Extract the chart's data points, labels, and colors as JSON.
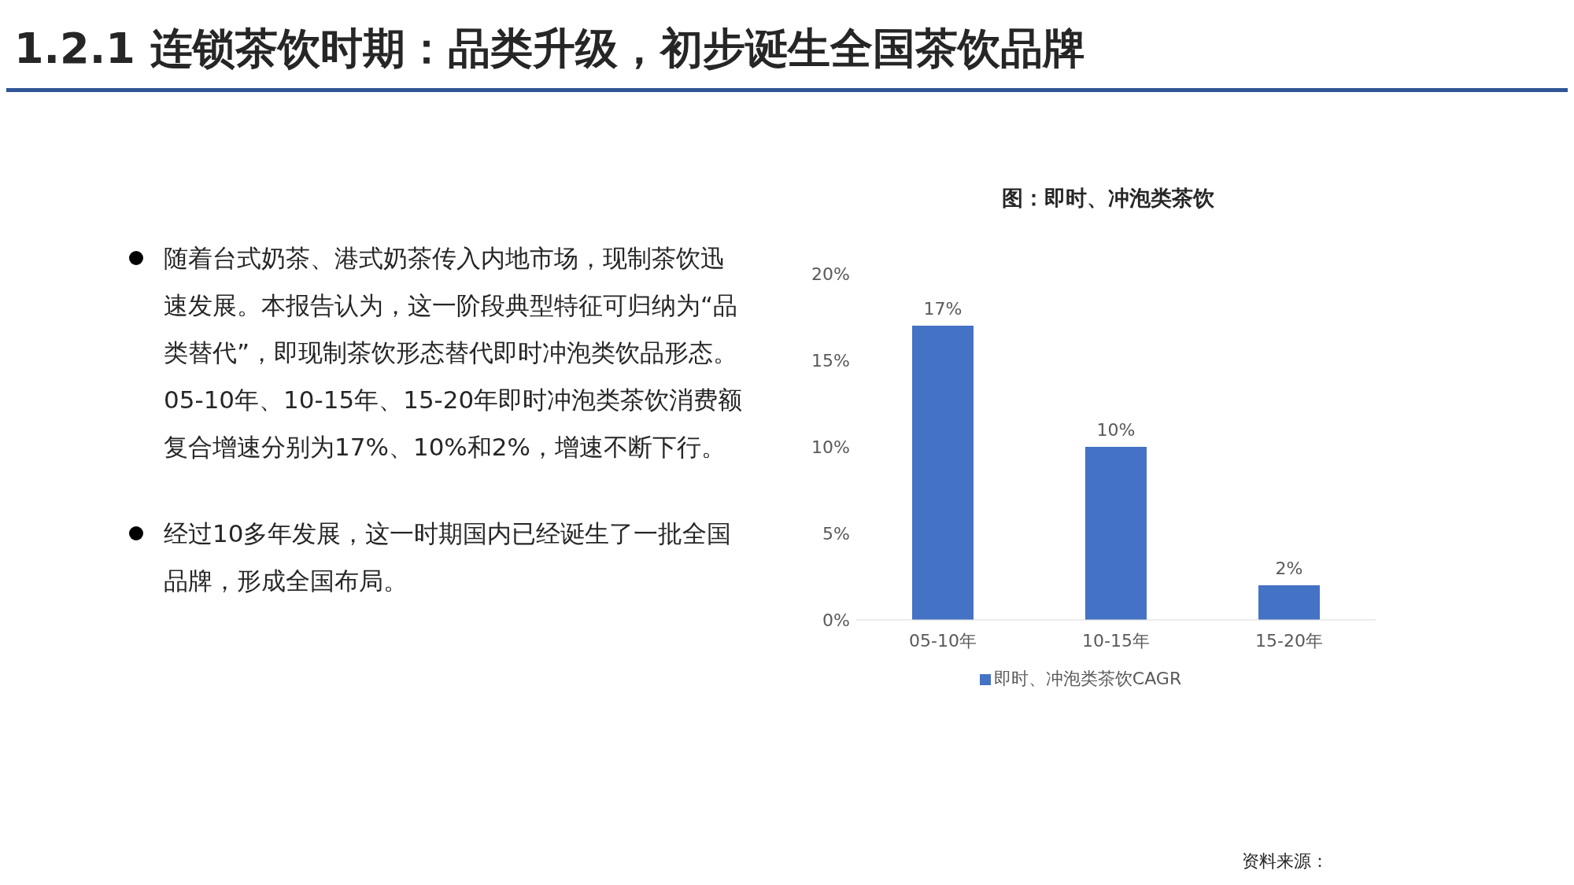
{
  "chart_data": {
    "type": "bar",
    "title": "图：即时、冲泡类茶饮",
    "categories": [
      "05-10年",
      "10-15年",
      "15-20年"
    ],
    "series": [
      {
        "name": "即时、冲泡类茶饮CAGR",
        "color": "#4472c4",
        "values": [
          17,
          10,
          2
        ]
      }
    ],
    "value_labels": [
      "17%",
      "10%",
      "2%"
    ],
    "ylim": [
      0,
      20
    ],
    "yticks": [
      {
        "value": 0,
        "label": "0%"
      },
      {
        "value": 5,
        "label": "5%"
      },
      {
        "value": 10,
        "label": "10%"
      },
      {
        "value": 15,
        "label": "15%"
      },
      {
        "value": 20,
        "label": "20%"
      }
    ],
    "grid": false,
    "legend": "bottom",
    "annotations": [
      "1.2.1 连锁茶饮时期：品类升级，初步诞生全国茶饮品牌",
      "随着台式奶茶、港式奶茶传入内地市场，现制茶饮迅速发展。本报告认为，这一阶段典型特征可归纳为“品类替代”，即现制茶饮形态替代即时冲泡类饮品形态。05-10年、10-15年、15-20年即时冲泡类茶饮消费额复合增速分别为17%、10%和2%，增速不断下行。",
      "经过10多年发展，这一时期国内已经诞生了一批全国品牌，形成全国布局。",
      "资料来源："
    ]
  }
}
